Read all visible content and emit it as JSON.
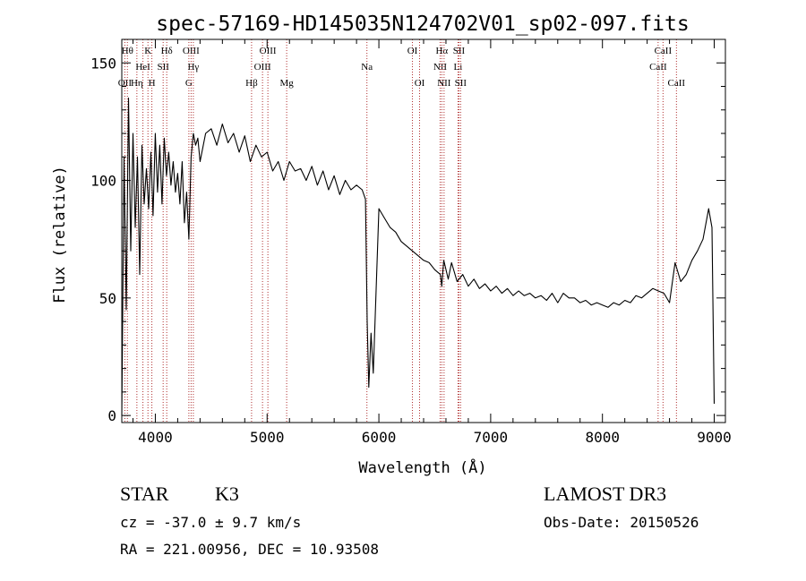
{
  "chart_data": {
    "type": "line",
    "title": "spec-57169-HD145035N124702V01_sp02-097.fits",
    "xlabel": "Wavelength (Å)",
    "ylabel": "Flux (relative)",
    "xlim": [
      3700,
      9100
    ],
    "ylim": [
      -3,
      160
    ],
    "xticks": [
      4000,
      5000,
      6000,
      7000,
      8000,
      9000
    ],
    "yticks": [
      0,
      50,
      100,
      150
    ],
    "grid": false,
    "series": [
      {
        "name": "",
        "x": [
          3700,
          3720,
          3740,
          3760,
          3780,
          3800,
          3820,
          3840,
          3860,
          3880,
          3900,
          3920,
          3940,
          3960,
          3980,
          4000,
          4020,
          4040,
          4060,
          4080,
          4100,
          4120,
          4140,
          4160,
          4180,
          4200,
          4220,
          4240,
          4260,
          4280,
          4300,
          4320,
          4340,
          4360,
          4380,
          4400,
          4450,
          4500,
          4550,
          4600,
          4650,
          4700,
          4750,
          4800,
          4850,
          4900,
          4950,
          5000,
          5050,
          5100,
          5150,
          5200,
          5250,
          5300,
          5350,
          5400,
          5450,
          5500,
          5550,
          5600,
          5650,
          5700,
          5750,
          5800,
          5850,
          5880,
          5895,
          5910,
          5930,
          5950,
          6000,
          6050,
          6100,
          6150,
          6200,
          6250,
          6300,
          6350,
          6400,
          6450,
          6500,
          6550,
          6563,
          6580,
          6620,
          6650,
          6700,
          6750,
          6800,
          6850,
          6900,
          6950,
          7000,
          7050,
          7100,
          7150,
          7200,
          7250,
          7300,
          7350,
          7400,
          7450,
          7500,
          7550,
          7600,
          7650,
          7700,
          7750,
          7800,
          7850,
          7900,
          7950,
          8000,
          8050,
          8100,
          8150,
          8200,
          8250,
          8300,
          8350,
          8400,
          8450,
          8500,
          8550,
          8600,
          8650,
          8700,
          8750,
          8800,
          8850,
          8900,
          8950,
          8980,
          9000
        ],
        "y": [
          0,
          110,
          45,
          135,
          70,
          120,
          80,
          110,
          60,
          115,
          90,
          105,
          88,
          112,
          85,
          120,
          95,
          115,
          90,
          118,
          102,
          112,
          98,
          108,
          95,
          103,
          90,
          108,
          82,
          95,
          75,
          110,
          120,
          115,
          118,
          108,
          120,
          122,
          115,
          124,
          116,
          120,
          112,
          119,
          108,
          115,
          110,
          112,
          104,
          108,
          100,
          108,
          104,
          105,
          100,
          106,
          98,
          104,
          96,
          102,
          94,
          100,
          96,
          98,
          96,
          92,
          40,
          12,
          35,
          18,
          88,
          84,
          80,
          78,
          74,
          72,
          70,
          68,
          66,
          65,
          62,
          60,
          55,
          66,
          58,
          65,
          57,
          60,
          55,
          58,
          54,
          56,
          53,
          55,
          52,
          54,
          51,
          53,
          51,
          52,
          50,
          51,
          49,
          52,
          48,
          52,
          50,
          50,
          48,
          49,
          47,
          48,
          47,
          46,
          48,
          47,
          49,
          48,
          51,
          50,
          52,
          54,
          53,
          52,
          48,
          65,
          57,
          60,
          66,
          70,
          75,
          88,
          80,
          5
        ]
      }
    ],
    "lines": [
      {
        "label": "OII",
        "x": 3727,
        "row": 2
      },
      {
        "label": "Hθ",
        "x": 3750,
        "row": 0
      },
      {
        "label": "Hη",
        "x": 3835,
        "row": 2
      },
      {
        "label": "HeI",
        "x": 3889,
        "row": 1
      },
      {
        "label": "K",
        "x": 3934,
        "row": 0
      },
      {
        "label": "H",
        "x": 3969,
        "row": 2
      },
      {
        "label": "SII",
        "x": 4070,
        "row": 1
      },
      {
        "label": "Hδ",
        "x": 4102,
        "row": 0
      },
      {
        "label": "G",
        "x": 4300,
        "row": 2
      },
      {
        "label": "OIII",
        "x": 4320,
        "row": 0
      },
      {
        "label": "Hγ",
        "x": 4340,
        "row": 1
      },
      {
        "label": "Hβ",
        "x": 4861,
        "row": 2
      },
      {
        "label": "OIII",
        "x": 4959,
        "row": 1
      },
      {
        "label": "OIII",
        "x": 5007,
        "row": 0
      },
      {
        "label": "Mg",
        "x": 5175,
        "row": 2
      },
      {
        "label": "Na",
        "x": 5893,
        "row": 1
      },
      {
        "label": "OI",
        "x": 6300,
        "row": 0
      },
      {
        "label": "OI",
        "x": 6364,
        "row": 2
      },
      {
        "label": "NII",
        "x": 6548,
        "row": 1
      },
      {
        "label": "Hα",
        "x": 6563,
        "row": 0
      },
      {
        "label": "NII",
        "x": 6583,
        "row": 2
      },
      {
        "label": "SII",
        "x": 6716,
        "row": 0
      },
      {
        "label": "Li",
        "x": 6708,
        "row": 1
      },
      {
        "label": "SII",
        "x": 6731,
        "row": 2
      },
      {
        "label": "CaII",
        "x": 8498,
        "row": 1
      },
      {
        "label": "CaII",
        "x": 8542,
        "row": 0
      },
      {
        "label": "CaII",
        "x": 8662,
        "row": 2
      }
    ]
  },
  "info": {
    "class_label": "STAR",
    "subclass": "K3",
    "survey": "LAMOST DR3",
    "redshift": "cz = -37.0 ± 9.7 km/s",
    "obs_date": "Obs-Date: 20150526",
    "coords": "RA = 221.00956, DEC =  10.93508"
  }
}
